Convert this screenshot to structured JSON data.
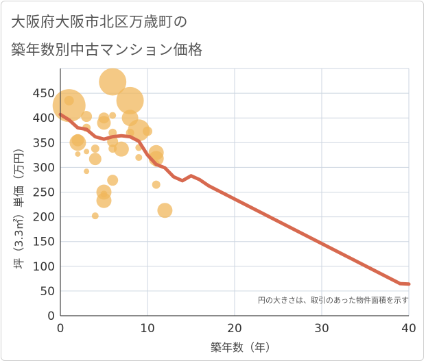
{
  "title_line1": "大阪府大阪市北区万歳町の",
  "title_line2": "築年数別中古マンション価格",
  "chart_data": {
    "type": "scatter",
    "xlabel": "築年数（年）",
    "ylabel": "坪（3.3㎡）単価（万円）",
    "xlim": [
      0,
      40
    ],
    "ylim": [
      0,
      500
    ],
    "xticks": [
      0,
      10,
      20,
      30,
      40
    ],
    "yticks": [
      0,
      50,
      100,
      150,
      200,
      250,
      300,
      350,
      400,
      450
    ],
    "note": "円の大きさは、取引のあった物件面積を示す",
    "colors": {
      "bubble": "#f0b75c",
      "line": "#d7694f",
      "grid": "#cdd6e0"
    },
    "bubbles": [
      {
        "x": 1,
        "y": 425,
        "s": 24
      },
      {
        "x": 1,
        "y": 435,
        "s": 7
      },
      {
        "x": 2,
        "y": 350,
        "s": 12
      },
      {
        "x": 2,
        "y": 355,
        "s": 9
      },
      {
        "x": 2,
        "y": 327,
        "s": 4
      },
      {
        "x": 3,
        "y": 403,
        "s": 8
      },
      {
        "x": 3,
        "y": 380,
        "s": 6
      },
      {
        "x": 3,
        "y": 332,
        "s": 4
      },
      {
        "x": 3,
        "y": 292,
        "s": 4
      },
      {
        "x": 4,
        "y": 338,
        "s": 6
      },
      {
        "x": 4,
        "y": 317,
        "s": 9
      },
      {
        "x": 4,
        "y": 202,
        "s": 5
      },
      {
        "x": 5,
        "y": 400,
        "s": 8
      },
      {
        "x": 5,
        "y": 390,
        "s": 10
      },
      {
        "x": 5,
        "y": 250,
        "s": 11
      },
      {
        "x": 5,
        "y": 246,
        "s": 5
      },
      {
        "x": 5,
        "y": 233,
        "s": 11
      },
      {
        "x": 6,
        "y": 473,
        "s": 20
      },
      {
        "x": 6,
        "y": 405,
        "s": 5
      },
      {
        "x": 6,
        "y": 370,
        "s": 6
      },
      {
        "x": 6,
        "y": 352,
        "s": 8
      },
      {
        "x": 6,
        "y": 338,
        "s": 6
      },
      {
        "x": 6,
        "y": 274,
        "s": 8
      },
      {
        "x": 7,
        "y": 337,
        "s": 11
      },
      {
        "x": 8,
        "y": 435,
        "s": 20
      },
      {
        "x": 8,
        "y": 400,
        "s": 12
      },
      {
        "x": 8,
        "y": 370,
        "s": 6
      },
      {
        "x": 9,
        "y": 375,
        "s": 16
      },
      {
        "x": 9,
        "y": 340,
        "s": 5
      },
      {
        "x": 9,
        "y": 320,
        "s": 5
      },
      {
        "x": 10,
        "y": 373,
        "s": 7
      },
      {
        "x": 11,
        "y": 330,
        "s": 11
      },
      {
        "x": 11,
        "y": 318,
        "s": 11
      },
      {
        "x": 11,
        "y": 308,
        "s": 5
      },
      {
        "x": 11,
        "y": 265,
        "s": 6
      },
      {
        "x": 12,
        "y": 213,
        "s": 11
      }
    ],
    "trend": {
      "x": [
        0,
        1,
        2,
        3,
        4,
        5,
        6,
        7,
        8,
        9,
        10,
        11,
        12,
        13,
        14,
        15,
        16,
        17,
        18,
        19,
        20,
        21,
        22,
        23,
        24,
        25,
        26,
        27,
        28,
        29,
        30,
        31,
        32,
        33,
        34,
        35,
        36,
        37,
        38,
        39,
        40
      ],
      "y": [
        407,
        396,
        380,
        377,
        362,
        357,
        362,
        364,
        362,
        353,
        325,
        306,
        299,
        281,
        273,
        283,
        275,
        263,
        254,
        245,
        236,
        227,
        218,
        209,
        200,
        191,
        182,
        173,
        164,
        155,
        146,
        137,
        128,
        119,
        110,
        101,
        92,
        83,
        74,
        65,
        64
      ]
    }
  }
}
